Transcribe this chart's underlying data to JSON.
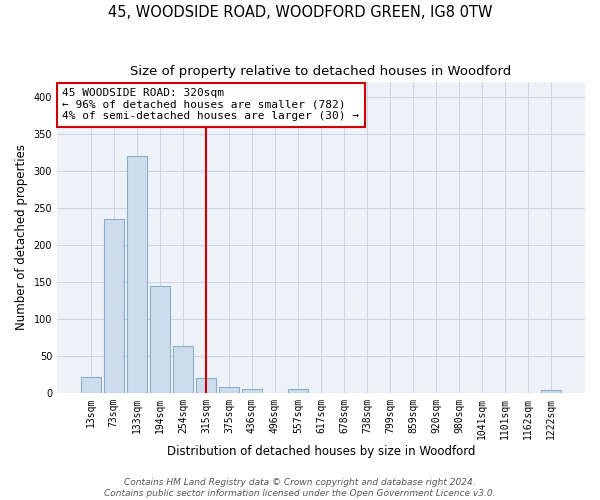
{
  "title": "45, WOODSIDE ROAD, WOODFORD GREEN, IG8 0TW",
  "subtitle": "Size of property relative to detached houses in Woodford",
  "xlabel": "Distribution of detached houses by size in Woodford",
  "ylabel": "Number of detached properties",
  "bar_labels": [
    "13sqm",
    "73sqm",
    "133sqm",
    "194sqm",
    "254sqm",
    "315sqm",
    "375sqm",
    "436sqm",
    "496sqm",
    "557sqm",
    "617sqm",
    "678sqm",
    "738sqm",
    "799sqm",
    "859sqm",
    "920sqm",
    "980sqm",
    "1041sqm",
    "1101sqm",
    "1162sqm",
    "1222sqm"
  ],
  "bar_heights": [
    22,
    235,
    320,
    145,
    63,
    20,
    8,
    6,
    0,
    5,
    0,
    0,
    0,
    0,
    0,
    0,
    0,
    0,
    0,
    0,
    4
  ],
  "bar_color": "#ccdcec",
  "bar_edgecolor": "#8aaec8",
  "vline_x": 5,
  "vline_color": "#cc0000",
  "annotation_line1": "45 WOODSIDE ROAD: 320sqm",
  "annotation_line2": "← 96% of detached houses are smaller (782)",
  "annotation_line3": "4% of semi-detached houses are larger (30) →",
  "annotation_box_edgecolor": "#cc0000",
  "annotation_box_facecolor": "#ffffff",
  "ylim": [
    0,
    420
  ],
  "yticks": [
    0,
    50,
    100,
    150,
    200,
    250,
    300,
    350,
    400
  ],
  "grid_color": "#c8d4e4",
  "bg_color": "#eef2f8",
  "footer_line1": "Contains HM Land Registry data © Crown copyright and database right 2024.",
  "footer_line2": "Contains public sector information licensed under the Open Government Licence v3.0.",
  "title_fontsize": 10.5,
  "subtitle_fontsize": 9.5,
  "label_fontsize": 8.5,
  "tick_fontsize": 7,
  "annot_fontsize": 8,
  "footer_fontsize": 6.5
}
